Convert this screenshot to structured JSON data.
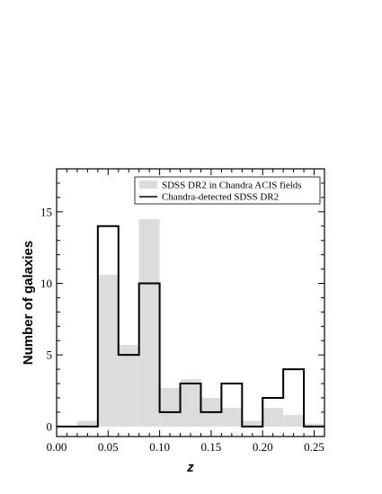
{
  "chart_data": {
    "type": "histogram",
    "xlabel": "z",
    "ylabel": "Number of galaxies",
    "xlim": [
      0.0,
      0.26
    ],
    "ylim": [
      -0.7,
      18.0
    ],
    "bin_width": 0.02,
    "x_ticks": [
      0.0,
      0.05,
      0.1,
      0.15,
      0.2,
      0.25
    ],
    "x_tick_labels": [
      "0.00",
      "0.05",
      "0.10",
      "0.15",
      "0.20",
      "0.25"
    ],
    "y_ticks": [
      0,
      5,
      10,
      15
    ],
    "y_tick_labels": [
      "0",
      "5",
      "10",
      "15"
    ],
    "legend_position": "top-right",
    "grid": false,
    "series": [
      {
        "name": "SDSS DR2 in Chandra ACIS fields",
        "style": "filled",
        "color": "#dcdcdc",
        "bins": [
          {
            "x0": 0.02,
            "x1": 0.04,
            "value": 0.4
          },
          {
            "x0": 0.04,
            "x1": 0.06,
            "value": 10.6
          },
          {
            "x0": 0.06,
            "x1": 0.08,
            "value": 5.7
          },
          {
            "x0": 0.08,
            "x1": 0.1,
            "value": 14.5
          },
          {
            "x0": 0.1,
            "x1": 0.12,
            "value": 2.7
          },
          {
            "x0": 0.12,
            "x1": 0.14,
            "value": 3.3
          },
          {
            "x0": 0.14,
            "x1": 0.16,
            "value": 2.0
          },
          {
            "x0": 0.16,
            "x1": 0.18,
            "value": 1.3
          },
          {
            "x0": 0.18,
            "x1": 0.2,
            "value": 0.4
          },
          {
            "x0": 0.2,
            "x1": 0.22,
            "value": 1.3
          },
          {
            "x0": 0.22,
            "x1": 0.24,
            "value": 0.8
          },
          {
            "x0": 0.24,
            "x1": 0.26,
            "value": 0.2
          }
        ]
      },
      {
        "name": "Chandra-detected SDSS DR2",
        "style": "step",
        "color": "#000000",
        "bins": [
          {
            "x0": 0.0,
            "x1": 0.02,
            "value": 0
          },
          {
            "x0": 0.02,
            "x1": 0.04,
            "value": 0
          },
          {
            "x0": 0.04,
            "x1": 0.06,
            "value": 14
          },
          {
            "x0": 0.06,
            "x1": 0.08,
            "value": 5
          },
          {
            "x0": 0.08,
            "x1": 0.1,
            "value": 10
          },
          {
            "x0": 0.1,
            "x1": 0.12,
            "value": 1
          },
          {
            "x0": 0.12,
            "x1": 0.14,
            "value": 3
          },
          {
            "x0": 0.14,
            "x1": 0.16,
            "value": 1
          },
          {
            "x0": 0.16,
            "x1": 0.18,
            "value": 3
          },
          {
            "x0": 0.18,
            "x1": 0.2,
            "value": 0
          },
          {
            "x0": 0.2,
            "x1": 0.22,
            "value": 2
          },
          {
            "x0": 0.22,
            "x1": 0.24,
            "value": 4
          },
          {
            "x0": 0.24,
            "x1": 0.26,
            "value": 0
          }
        ]
      }
    ]
  }
}
